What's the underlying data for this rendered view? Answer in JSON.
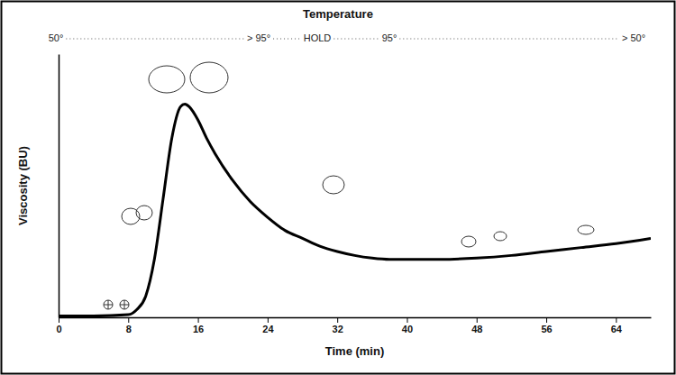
{
  "chart_data": {
    "type": "line",
    "title": "Temperature",
    "annotations": [
      "50°",
      "> 95°",
      "HOLD",
      "95°",
      "> 50°"
    ],
    "x_label": "Time (min)",
    "y_label": "Viscosity (BU)",
    "x": [
      0,
      4,
      8,
      9,
      10,
      11,
      12,
      13,
      14,
      14.5,
      15,
      16,
      17,
      18,
      20,
      22,
      24,
      26,
      28,
      30,
      32,
      34,
      36,
      38,
      40,
      44,
      48,
      52,
      56,
      60,
      64,
      68
    ],
    "values": [
      0.5,
      0.5,
      1,
      3,
      8,
      22,
      45,
      68,
      80,
      81,
      80,
      75,
      68,
      62,
      52,
      44,
      38,
      33,
      30,
      27,
      25,
      23.5,
      22.5,
      22,
      22,
      22,
      22.5,
      23.5,
      25,
      26.5,
      28,
      30
    ],
    "color": "#000000",
    "xlim": [
      0,
      68
    ],
    "xticks": [
      0,
      8,
      16,
      24,
      32,
      40,
      48,
      56,
      64
    ],
    "ylim": [
      0,
      100
    ],
    "tick_labels": "x",
    "grid": false
  }
}
